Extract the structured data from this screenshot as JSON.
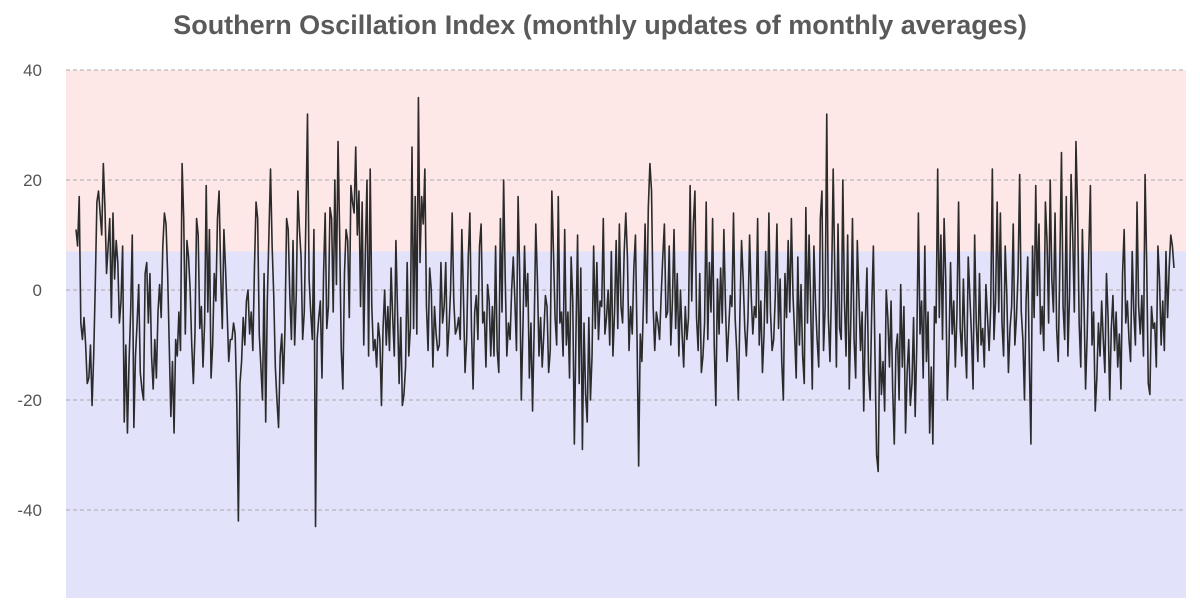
{
  "chart_data": {
    "type": "line",
    "title": "Southern Oscillation Index (monthly updates of monthly averages)",
    "xlabel": "",
    "ylabel": "",
    "ylim": [
      -56,
      40
    ],
    "yticks": [
      40,
      20,
      0,
      -20,
      -40
    ],
    "grid": true,
    "legend": "none",
    "bands": [
      {
        "from": 7,
        "to": 40,
        "color": "#fde7e7"
      },
      {
        "from": -56,
        "to": 7,
        "color": "#e2e2fb"
      }
    ],
    "line_color": "#2b2b2b",
    "grid_color": "#aaaaaa",
    "series": [
      {
        "values": [
          11,
          8,
          17,
          -6,
          -9,
          -5,
          -10,
          -17,
          -16,
          -10,
          -21,
          -12,
          1,
          16,
          18,
          14,
          10,
          23,
          15,
          3,
          8,
          13,
          -5,
          14,
          2,
          9,
          5,
          -6,
          -2,
          8,
          -24,
          -10,
          -26,
          -13,
          -4,
          10,
          -25,
          -12,
          -6,
          1,
          -15,
          -18,
          -20,
          3,
          5,
          -6,
          3,
          -12,
          -18,
          -9,
          -16,
          -4,
          1,
          -5,
          8,
          14,
          12,
          3,
          -10,
          -23,
          -13,
          -26,
          -9,
          -12,
          -4,
          -11,
          23,
          13,
          -8,
          9,
          6,
          0,
          -10,
          -17,
          -8,
          13,
          10,
          -7,
          -3,
          -14,
          -6,
          19,
          -4,
          11,
          -16,
          -10,
          3,
          -2,
          13,
          18,
          3,
          -7,
          11,
          4,
          -4,
          -13,
          -9,
          -9,
          -6,
          -8,
          -20,
          -42,
          -17,
          -13,
          -5,
          -10,
          -2,
          0,
          -8,
          -4,
          -11,
          4,
          16,
          13,
          -8,
          -14,
          -20,
          3,
          -24,
          -2,
          10,
          22,
          8,
          -1,
          -14,
          -20,
          -25,
          -12,
          -8,
          -17,
          -7,
          13,
          11,
          -1,
          -9,
          9,
          -10,
          -1,
          18,
          11,
          6,
          -9,
          -4,
          13,
          32,
          2,
          -4,
          -9,
          11,
          -43,
          -9,
          -5,
          -2,
          -16,
          3,
          14,
          -7,
          -3,
          15,
          13,
          -4,
          20,
          1,
          27,
          10,
          -11,
          -18,
          3,
          11,
          9,
          -5,
          19,
          16,
          14,
          26,
          10,
          18,
          -3,
          16,
          -10,
          7,
          20,
          -12,
          22,
          -3,
          -11,
          -9,
          -14,
          -6,
          -9,
          -21,
          -7,
          0,
          -10,
          -3,
          -11,
          4,
          -5,
          -12,
          9,
          -4,
          -17,
          -5,
          -21,
          -19,
          -14,
          5,
          -12,
          -7,
          26,
          -7,
          17,
          -8,
          35,
          5,
          17,
          12,
          22,
          -3,
          -11,
          4,
          0,
          -14,
          -3,
          -8,
          -11,
          -10,
          5,
          -6,
          -3,
          5,
          -12,
          -7,
          0,
          14,
          -2,
          -8,
          -7,
          -5,
          -9,
          11,
          -1,
          -15,
          -9,
          6,
          14,
          -7,
          -18,
          -4,
          -1,
          -9,
          8,
          12,
          -6,
          -4,
          -14,
          1,
          -2,
          -12,
          -3,
          -12,
          8,
          -11,
          -15,
          13,
          -4,
          20,
          2,
          -12,
          -6,
          -9,
          0,
          6,
          -2,
          -11,
          17,
          3,
          -20,
          -7,
          8,
          -3,
          3,
          -16,
          -6,
          -22,
          -7,
          12,
          2,
          -12,
          -5,
          -14,
          -8,
          -1,
          -3,
          -15,
          -11,
          18,
          7,
          -5,
          -10,
          17,
          -6,
          -4,
          -12,
          11,
          -10,
          -4,
          -16,
          6,
          -2,
          -28,
          -8,
          10,
          -17,
          4,
          -29,
          -6,
          -19,
          -24,
          -5,
          -20,
          -12,
          8,
          -7,
          5,
          -9,
          -2,
          -3,
          13,
          -8,
          -5,
          0,
          -10,
          7,
          -12,
          -4,
          9,
          -7,
          12,
          -3,
          -6,
          7,
          14,
          6,
          -11,
          -3,
          -8,
          4,
          10,
          -9,
          -32,
          -8,
          -13,
          -2,
          12,
          -6,
          15,
          23,
          18,
          -3,
          -11,
          -4,
          -6,
          -9,
          -1,
          6,
          12,
          -5,
          -4,
          8,
          -10,
          -2,
          11,
          -7,
          3,
          -12,
          0,
          -8,
          -14,
          -3,
          -9,
          -5,
          19,
          -2,
          12,
          18,
          -5,
          -11,
          3,
          -15,
          -12,
          -6,
          16,
          -9,
          5,
          -4,
          13,
          -10,
          -21,
          2,
          -8,
          4,
          -6,
          11,
          -3,
          -13,
          -7,
          -1,
          -3,
          14,
          -5,
          -11,
          -20,
          -4,
          9,
          2,
          -7,
          -12,
          -5,
          10,
          -1,
          -8,
          -3,
          -5,
          13,
          -10,
          -2,
          -15,
          -8,
          7,
          -6,
          14,
          -4,
          -11,
          -9,
          -1,
          12,
          -7,
          2,
          -13,
          -20,
          3,
          -5,
          9,
          -4,
          13,
          -1,
          -8,
          -16,
          6,
          -10,
          1,
          -12,
          -17,
          15,
          -6,
          10,
          -3,
          -18,
          8,
          -2,
          -9,
          -14,
          13,
          18,
          -11,
          -3,
          32,
          -5,
          -13,
          1,
          22,
          3,
          -14,
          12,
          -7,
          -9,
          20,
          -2,
          -12,
          10,
          -18,
          -5,
          13,
          -9,
          -16,
          9,
          -1,
          -11,
          -4,
          -22,
          -6,
          4,
          -15,
          -20,
          -3,
          8,
          -12,
          -30,
          -33,
          -8,
          -19,
          -13,
          -22,
          0,
          -5,
          -14,
          -2,
          -18,
          -28,
          -11,
          -8,
          -20,
          1,
          -14,
          -3,
          -26,
          -15,
          -9,
          -21,
          -17,
          -5,
          -23,
          -10,
          14,
          -8,
          -2,
          -16,
          8,
          -13,
          -4,
          -26,
          -14,
          -28,
          -3,
          -6,
          22,
          -5,
          10,
          -9,
          13,
          2,
          -20,
          -11,
          5,
          -8,
          -2,
          -14,
          -4,
          16,
          -7,
          -12,
          2,
          -9,
          -16,
          6,
          -1,
          -8,
          -18,
          10,
          -6,
          -13,
          3,
          -10,
          -7,
          -14,
          1,
          -5,
          -11,
          -3,
          22,
          -9,
          -2,
          16,
          -4,
          14,
          -6,
          -12,
          8,
          -1,
          -15,
          -7,
          -3,
          12,
          -10,
          -5,
          3,
          21,
          -4,
          -9,
          -20,
          -2,
          6,
          -13,
          -28,
          8,
          -5,
          19,
          -1,
          12,
          -8,
          -3,
          -11,
          16,
          9,
          -6,
          20,
          2,
          -4,
          14,
          -7,
          -13,
          5,
          25,
          -3,
          -9,
          17,
          -12,
          -1,
          21,
          10,
          -4,
          27,
          15,
          -6,
          -14,
          11,
          -2,
          -18,
          -8,
          7,
          19,
          -10,
          -4,
          -22,
          -16,
          -6,
          -12,
          -2,
          -9,
          -15,
          3,
          -5,
          -20,
          -7,
          -1,
          -11,
          -4,
          -14,
          -8,
          -18,
          3,
          11,
          -6,
          -2,
          -9,
          -13,
          7,
          -4,
          -10,
          16,
          -3,
          -8,
          -1,
          -12,
          21,
          5,
          -17,
          -19,
          -3,
          -7,
          -6,
          -14,
          8,
          2,
          -10,
          -2,
          -11,
          7,
          -5,
          4,
          10,
          8,
          4
        ]
      }
    ]
  }
}
